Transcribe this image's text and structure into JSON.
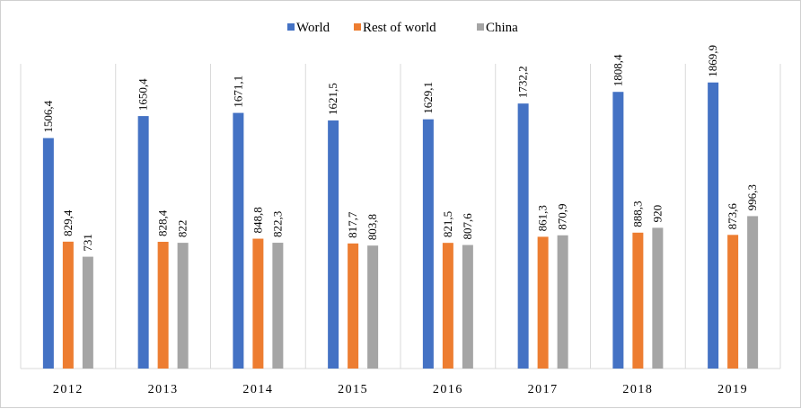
{
  "chart_data": {
    "type": "bar",
    "categories": [
      "2012",
      "2013",
      "2014",
      "2015",
      "2016",
      "2017",
      "2018",
      "2019"
    ],
    "series": [
      {
        "name": "World",
        "color": "#4472C4",
        "values": [
          1506.4,
          1650.4,
          1671.1,
          1621.5,
          1629.1,
          1732.2,
          1808.4,
          1869.9
        ],
        "labels": [
          "1506,4",
          "1650,4",
          "1671,1",
          "1621,5",
          "1629,1",
          "1732,2",
          "1808,4",
          "1869,9"
        ]
      },
      {
        "name": "Rest of world",
        "color": "#ED7D31",
        "values": [
          829.4,
          828.4,
          848.8,
          817.7,
          821.5,
          861.3,
          888.3,
          873.6
        ],
        "labels": [
          "829,4",
          "828,4",
          "848,8",
          "817,7",
          "821,5",
          "861,3",
          "888,3",
          "873,6"
        ]
      },
      {
        "name": "China",
        "color": "#A5A5A5",
        "values": [
          731,
          822,
          822.3,
          803.8,
          807.6,
          870.9,
          920,
          996.3
        ],
        "labels": [
          "731",
          "822",
          "822,3",
          "803,8",
          "807,6",
          "870,9",
          "920",
          "996,3"
        ]
      }
    ],
    "ylim": [
      0,
      2000
    ],
    "grid": "vertical category separators",
    "legend_position": "top-center"
  }
}
